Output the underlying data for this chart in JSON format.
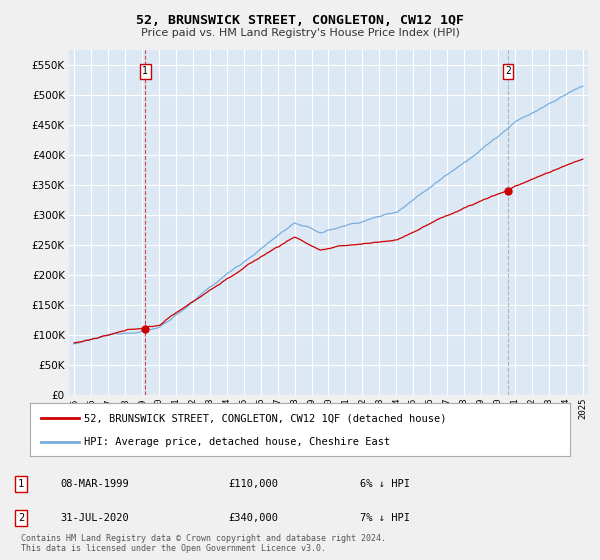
{
  "title": "52, BRUNSWICK STREET, CONGLETON, CW12 1QF",
  "subtitle": "Price paid vs. HM Land Registry's House Price Index (HPI)",
  "legend_label_red": "52, BRUNSWICK STREET, CONGLETON, CW12 1QF (detached house)",
  "legend_label_blue": "HPI: Average price, detached house, Cheshire East",
  "transaction1_date": "08-MAR-1999",
  "transaction1_price": "£110,000",
  "transaction1_hpi": "6% ↓ HPI",
  "transaction2_date": "31-JUL-2020",
  "transaction2_price": "£340,000",
  "transaction2_hpi": "7% ↓ HPI",
  "footnote": "Contains HM Land Registry data © Crown copyright and database right 2024.\nThis data is licensed under the Open Government Licence v3.0.",
  "ylim": [
    0,
    575000
  ],
  "yticks": [
    0,
    50000,
    100000,
    150000,
    200000,
    250000,
    300000,
    350000,
    400000,
    450000,
    500000,
    550000
  ],
  "color_red": "#cc0000",
  "color_blue": "#7aaddb",
  "color_vline1": "#cc0000",
  "color_vline2": "#aaaaaa",
  "bg_color": "#dce9f5",
  "fig_bg": "#f0f0f0",
  "marker1_x": 1999.19,
  "marker1_y": 110000,
  "marker2_x": 2020.58,
  "marker2_y": 340000,
  "vline1_x": 1999.19,
  "vline2_x": 2020.58,
  "xlim_left": 1994.7,
  "xlim_right": 2025.3
}
